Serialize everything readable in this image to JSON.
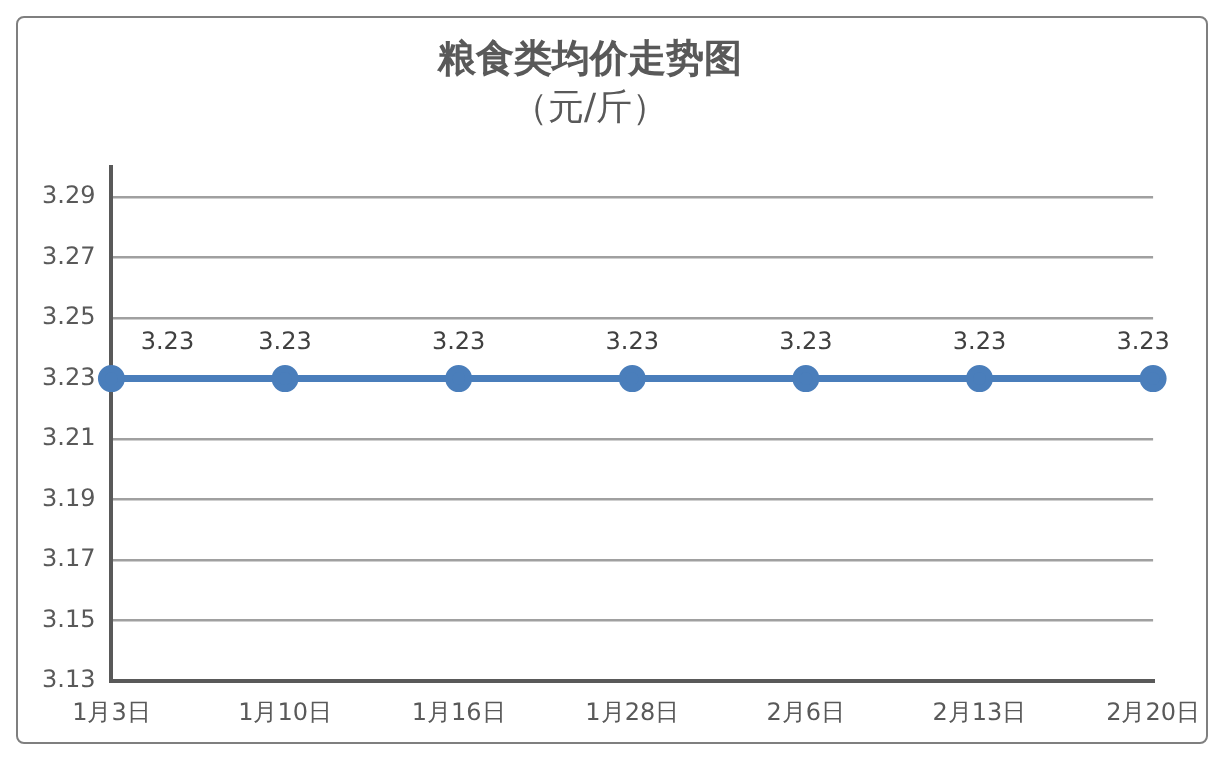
{
  "chart_data": {
    "type": "line",
    "title": "粮食类均价走势图",
    "subtitle": "（元/斤）",
    "categories": [
      "1月3日",
      "1月10日",
      "1月16日",
      "1月28日",
      "2月6日",
      "2月13日",
      "2月20日"
    ],
    "series": [
      {
        "color": "#4a7ebb",
        "values": [
          3.23,
          3.23,
          3.23,
          3.23,
          3.23,
          3.23,
          3.23
        ]
      }
    ],
    "ylim": [
      3.13,
      3.3
    ],
    "yticks": [
      3.13,
      3.15,
      3.17,
      3.19,
      3.21,
      3.23,
      3.25,
      3.27,
      3.29
    ],
    "grid": "y",
    "legend": false,
    "marker": "circle",
    "line_style": "solid",
    "data_labels": true
  }
}
